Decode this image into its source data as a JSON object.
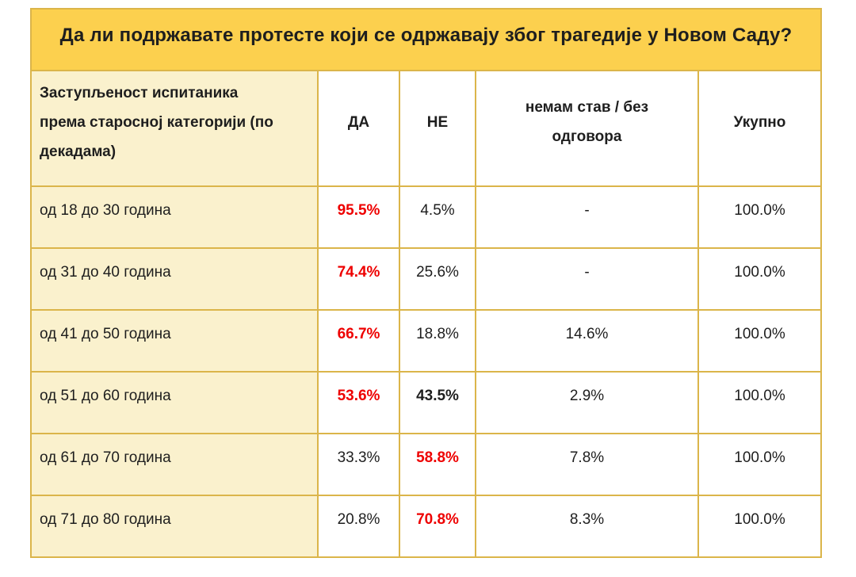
{
  "colors": {
    "header_gold": "#FCD04E",
    "category_cream": "#FAF1CD",
    "border_gold": "#DBB54A",
    "highlight_red": "#EE0000",
    "text": "#1E1E1E",
    "background": "#FFFFFF"
  },
  "table": {
    "title": "Да ли подржавате протесте који се одржавају због трагедије у Новом Саду?",
    "columns": {
      "category": "Заступљеност испитаника\nпрема старосној категорији (по\nдекадама)",
      "da": "ДА",
      "ne": "НЕ",
      "no_opinion": "немам став / без\nодговора",
      "total": "Укупно"
    },
    "rows": [
      {
        "category": "од 18 до 30 година",
        "da": "95.5%",
        "ne": "4.5%",
        "no_opinion": "-",
        "total": "100.0%",
        "highlight_red": "da"
      },
      {
        "category": "од 31 до 40 година",
        "da": "74.4%",
        "ne": "25.6%",
        "no_opinion": "-",
        "total": "100.0%",
        "highlight_red": "da"
      },
      {
        "category": "од 41 до 50 година",
        "da": "66.7%",
        "ne": "18.8%",
        "no_opinion": "14.6%",
        "total": "100.0%",
        "highlight_red": "da"
      },
      {
        "category": "од 51 до 60 година",
        "da": "53.6%",
        "ne": "43.5%",
        "no_opinion": "2.9%",
        "total": "100.0%",
        "highlight_red": "da",
        "highlight_bold": "ne"
      },
      {
        "category": "од 61 до 70 година",
        "da": "33.3%",
        "ne": "58.8%",
        "no_opinion": "7.8%",
        "total": "100.0%",
        "highlight_red": "ne"
      },
      {
        "category": "од 71 до 80 година",
        "da": "20.8%",
        "ne": "70.8%",
        "no_opinion": "8.3%",
        "total": "100.0%",
        "highlight_red": "ne"
      }
    ]
  },
  "chart_data": {
    "type": "table",
    "title": "Да ли подржавате протесте који се одржавају због трагедије у Новом Саду?",
    "columns": [
      "Заступљеност испитаника према старосној категорији (по декадама)",
      "ДА",
      "НЕ",
      "немам став / без одговора",
      "Укупно"
    ],
    "units": "%",
    "rows": [
      [
        "од 18 до 30 година",
        95.5,
        4.5,
        null,
        100.0
      ],
      [
        "од 31 до 40 година",
        74.4,
        25.6,
        null,
        100.0
      ],
      [
        "од 41 до 50 година",
        66.7,
        18.8,
        14.6,
        100.0
      ],
      [
        "од 51 до 60 година",
        53.6,
        43.5,
        2.9,
        100.0
      ],
      [
        "од 61 до 70 година",
        33.3,
        58.8,
        7.8,
        100.0
      ],
      [
        "од 71 до 80 година",
        20.8,
        70.8,
        8.3,
        100.0
      ]
    ],
    "highlight_red_cells": [
      [
        0,
        "ДА"
      ],
      [
        1,
        "ДА"
      ],
      [
        2,
        "ДА"
      ],
      [
        3,
        "ДА"
      ],
      [
        4,
        "НЕ"
      ],
      [
        5,
        "НЕ"
      ]
    ],
    "highlight_bold_black_cells": [
      [
        3,
        "НЕ"
      ]
    ]
  }
}
